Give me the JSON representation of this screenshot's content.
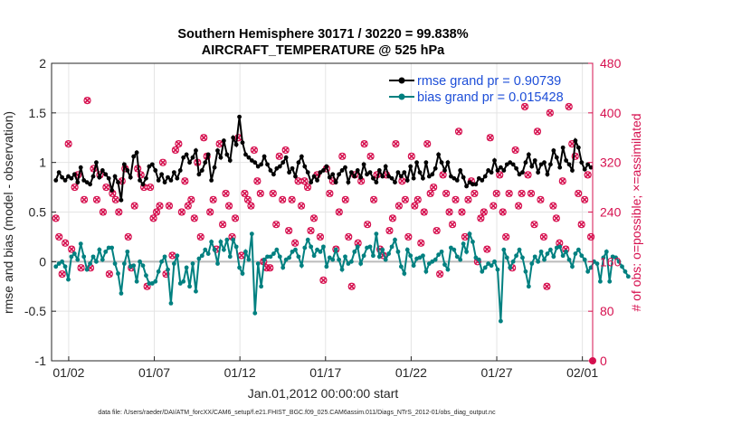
{
  "chart_data": {
    "type": "line",
    "title": "Southern Hemisphere 30171 / 30220 = 99.838%",
    "subtitle": "AIRCRAFT_TEMPERATURE @ 525 hPa",
    "xlabel": "Jan.01,2012 00:00:00 start",
    "ylabel_left": "rmse and bias (model - observation)",
    "ylabel_right": "# of obs: o=possible; ×=assimilated",
    "footer": "data file: /Users/raeder/DAI/ATM_forcXX/CAM6_setup/f.e21.FHIST_BGC.f09_025.CAM6assim.011/Diags_NTrS_2012-01/obs_diag_output.nc",
    "xlim": [
      0,
      31.6
    ],
    "ylim_left": [
      -1,
      2
    ],
    "ylim_right": [
      0,
      480
    ],
    "x_ticks": [
      1,
      6,
      11,
      16,
      21,
      26,
      31
    ],
    "x_tick_labels": [
      "01/02",
      "01/07",
      "01/12",
      "01/17",
      "01/22",
      "01/27",
      "02/01"
    ],
    "y_ticks_left": [
      "-1",
      "-0.5",
      "0",
      "0.5",
      "1",
      "1.5",
      "2"
    ],
    "y_tick_values_left": [
      -1,
      -0.5,
      0,
      0.5,
      1,
      1.5,
      2
    ],
    "y_ticks_right": [
      "0",
      "80",
      "160",
      "240",
      "320",
      "400",
      "480"
    ],
    "y_tick_values_right": [
      0,
      80,
      160,
      240,
      320,
      400,
      480
    ],
    "grid": true,
    "legend_position": "top-right",
    "colors": {
      "rmse": "#000000",
      "bias": "#008080",
      "obs": "#d6104f",
      "zero_line": "#bbbbbb",
      "legend_text": "#1d4ed8",
      "right_axis": "#d6104f"
    },
    "series": [
      {
        "name": "rmse grand pr = 0.90739",
        "values": [
          0.82,
          0.9,
          0.85,
          0.82,
          0.86,
          0.84,
          0.88,
          0.8,
          0.95,
          0.82,
          0.8,
          0.78,
          0.86,
          1.0,
          0.85,
          0.92,
          0.88,
          0.84,
          0.72,
          0.86,
          0.8,
          0.62,
          0.98,
          0.92,
          0.85,
          1.06,
          1.1,
          0.82,
          0.78,
          0.84,
          0.96,
          0.98,
          0.92,
          0.82,
          0.88,
          0.8,
          0.85,
          0.82,
          0.9,
          0.84,
          0.92,
          1.05,
          1.08,
          1.0,
          1.05,
          1.12,
          0.88,
          0.92,
          1.0,
          1.08,
          0.82,
          0.95,
          1.12,
          1.05,
          1.22,
          1.08,
          1.02,
          1.25,
          1.18,
          1.46,
          1.2,
          1.08,
          1.05,
          1.02,
          1.0,
          0.96,
          0.98,
          1.06,
          0.98,
          0.92,
          0.88,
          0.94,
          0.96,
          1.0,
          1.05,
          0.9,
          0.94,
          0.86,
          1.0,
          1.06,
          0.96,
          0.9,
          0.8,
          0.86,
          0.82,
          0.9,
          0.92,
          0.96,
          0.85,
          0.88,
          0.8,
          0.88,
          0.92,
          0.95,
          0.8,
          0.9,
          0.86,
          0.92,
          0.85,
          0.98,
          0.88,
          0.9,
          0.84,
          0.8,
          0.92,
          0.86,
          0.96,
          0.86,
          0.84,
          0.8,
          0.9,
          0.86,
          0.9,
          0.82,
          0.96,
          0.84,
          1.0,
          0.9,
          0.84,
          1.0,
          0.86,
          0.88,
          0.94,
          1.08,
          1.0,
          0.92,
          1.0,
          0.86,
          0.84,
          0.82,
          0.92,
          0.85,
          0.76,
          0.8,
          0.78,
          0.78,
          0.84,
          0.82,
          0.86,
          0.92,
          0.9,
          1.02,
          0.92,
          0.95,
          0.92,
          0.98,
          1.0,
          0.98,
          0.94,
          0.88,
          0.9,
          1.0,
          1.08,
          0.96,
          1.02,
          0.9,
          0.98,
          1.0,
          0.88,
          0.98,
          1.12,
          1.05,
          0.95,
          1.15,
          1.02,
          0.98,
          0.92,
          1.22,
          1.15,
          1.0,
          0.93,
          0.98,
          0.95
        ]
      },
      {
        "name": "bias grand pr = 0.015428",
        "values": [
          -0.05,
          -0.02,
          0.0,
          -0.05,
          -0.18,
          0.05,
          0.08,
          0.02,
          0.18,
          0.05,
          -0.08,
          -0.02,
          0.05,
          0.0,
          0.12,
          0.02,
          0.1,
          0.14,
          0.14,
          -0.02,
          -0.12,
          -0.32,
          -0.02,
          0.1,
          -0.05,
          -0.04,
          -0.2,
          0.0,
          -0.04,
          -0.14,
          -0.22,
          -0.22,
          -0.2,
          -0.1,
          0.0,
          0.05,
          -0.08,
          -0.42,
          -0.02,
          0.06,
          -0.22,
          -0.2,
          -0.06,
          -0.25,
          -0.02,
          -0.3,
          0.03,
          0.06,
          0.12,
          0.08,
          0.2,
          0.12,
          -0.02,
          0.2,
          0.12,
          0.22,
          0.05,
          0.22,
          0.15,
          -0.06,
          -0.12,
          0.1,
          0.02,
          0.28,
          -0.52,
          -0.02,
          -0.25,
          0.02,
          0.05,
          0.05,
          0.08,
          0.12,
          0.05,
          -0.06,
          0.02,
          0.04,
          0.1,
          0.12,
          0.05,
          -0.04,
          0.14,
          0.22,
          0.15,
          0.06,
          0.12,
          0.1,
          0.15,
          -0.05,
          0.04,
          0.02,
          0.12,
          0.02,
          -0.08,
          0.05,
          -0.02,
          0.0,
          0.1,
          0.15,
          -0.02,
          0.06,
          0.14,
          0.15,
          0.06,
          0.28,
          0.05,
          0.12,
          0.02,
          0.08,
          0.15,
          0.22,
          0.1,
          -0.05,
          -0.12,
          0.12,
          0.06,
          -0.04,
          0.03,
          0.04,
          0.06,
          -0.1,
          -0.02,
          0.0,
          0.02,
          0.07,
          0.1,
          -0.03,
          -0.08,
          0.14,
          0.12,
          0.05,
          0.02,
          0.18,
          0.1,
          0.28,
          0.2,
          0.04,
          0.02,
          -0.1,
          -0.06,
          -0.02,
          -0.04,
          0.0,
          -0.08,
          -0.6,
          0.12,
          0.04,
          -0.06,
          0.0,
          0.06,
          0.12,
          0.04,
          -0.1,
          -0.25,
          -0.02,
          0.05,
          0.0,
          0.1,
          0.02,
          0.08,
          0.12,
          0.05,
          0.14,
          0.15,
          0.06,
          0.1,
          0.02,
          -0.05,
          0.08,
          0.12,
          0.06,
          0.02,
          -0.1,
          -0.06,
          0.0,
          -0.02,
          -0.2,
          0.04,
          0.1,
          -0.2,
          0.05,
          0.04,
          0.0,
          -0.05,
          -0.1,
          -0.15
        ]
      },
      {
        "name": "possible",
        "marker": "circle",
        "values": [
          230,
          200,
          140,
          190,
          350,
          180,
          280,
          300,
          150,
          260,
          420,
          150,
          310,
          260,
          300,
          240,
          280,
          140,
          270,
          260,
          240,
          290,
          310,
          200,
          150,
          250,
          310,
          300,
          280,
          120,
          280,
          230,
          240,
          250,
          320,
          140,
          250,
          170,
          340,
          350,
          240,
          290,
          250,
          260,
          230,
          320,
          200,
          360,
          330,
          240,
          260,
          180,
          350,
          220,
          270,
          250,
          200,
          230,
          360,
          170,
          270,
          260,
          250,
          340,
          290,
          270,
          160,
          150,
          150,
          270,
          220,
          330,
          260,
          340,
          210,
          260,
          190,
          290,
          250,
          290,
          280,
          210,
          230,
          300,
          200,
          130,
          310,
          270,
          290,
          180,
          240,
          330,
          260,
          200,
          120,
          300,
          190,
          290,
          350,
          220,
          330,
          260,
          300,
          180,
          170,
          300,
          210,
          230,
          350,
          250,
          290,
          260,
          200,
          330,
          250,
          260,
          190,
          240,
          350,
          270,
          280,
          210,
          140,
          300,
          270,
          240,
          220,
          260,
          370,
          240,
          200,
          260,
          290,
          270,
          160,
          230,
          240,
          180,
          360,
          250,
          270,
          300,
          240,
          200,
          270,
          150,
          340,
          250,
          270,
          410,
          300,
          270,
          220,
          370,
          260,
          200,
          120,
          400,
          250,
          230,
          190,
          290,
          180,
          410,
          350,
          330,
          270,
          220,
          260,
          300,
          200
        ]
      },
      {
        "name": "assimilated",
        "marker": "x",
        "values": [
          230,
          200,
          140,
          190,
          350,
          180,
          280,
          300,
          150,
          260,
          420,
          150,
          310,
          260,
          300,
          240,
          280,
          140,
          270,
          260,
          240,
          290,
          310,
          200,
          150,
          250,
          310,
          300,
          280,
          120,
          280,
          230,
          240,
          250,
          320,
          140,
          250,
          170,
          340,
          350,
          240,
          290,
          250,
          260,
          230,
          320,
          200,
          360,
          330,
          240,
          260,
          180,
          350,
          220,
          270,
          250,
          200,
          230,
          360,
          170,
          270,
          260,
          250,
          340,
          290,
          270,
          160,
          150,
          150,
          270,
          220,
          330,
          260,
          340,
          210,
          260,
          190,
          290,
          250,
          290,
          280,
          210,
          230,
          300,
          200,
          130,
          310,
          270,
          290,
          180,
          240,
          330,
          260,
          200,
          120,
          300,
          190,
          290,
          350,
          220,
          330,
          260,
          300,
          180,
          170,
          300,
          210,
          230,
          350,
          250,
          290,
          260,
          200,
          330,
          250,
          260,
          190,
          240,
          350,
          270,
          280,
          210,
          140,
          300,
          270,
          240,
          220,
          260,
          370,
          240,
          200,
          260,
          290,
          270,
          160,
          230,
          240,
          180,
          360,
          250,
          270,
          300,
          240,
          200,
          270,
          150,
          340,
          250,
          270,
          410,
          300,
          270,
          220,
          370,
          260,
          200,
          120,
          400,
          250,
          230,
          190,
          290,
          180,
          410,
          350,
          330,
          270,
          220,
          260,
          300,
          200
        ]
      }
    ]
  }
}
